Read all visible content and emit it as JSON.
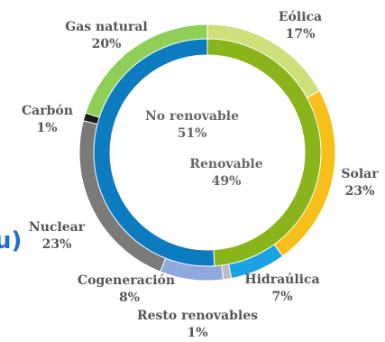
{
  "chart_data": {
    "type": "donut",
    "outer_ring": [
      {
        "name": "Eólica",
        "value": 17,
        "label": "17%",
        "color": "#cfe07a"
      },
      {
        "name": "Solar",
        "value": 23,
        "label": "23%",
        "color": "#f7bf1a"
      },
      {
        "name": "Hidraúlica",
        "value": 7,
        "label": "7%",
        "color": "#1ba2e2"
      },
      {
        "name": "Resto renovables",
        "value": 1,
        "label": "1%",
        "color": "#bdbdbd"
      },
      {
        "name": "Cogeneración",
        "value": 8,
        "label": "8%",
        "color": "#8fa9dd"
      },
      {
        "name": "Nuclear",
        "value": 23,
        "label": "23%",
        "color": "#7a7a7a"
      },
      {
        "name": "Carbón",
        "value": 1,
        "label": "1%",
        "color": "#1a1a1a"
      },
      {
        "name": "Gas natural",
        "value": 20,
        "label": "20%",
        "color": "#8fcf58"
      }
    ],
    "inner_ring": [
      {
        "name": "Renovable",
        "value": 49,
        "label": "49%",
        "color": "#8ab51a"
      },
      {
        "name": "No renovable",
        "value": 51,
        "label": "51%",
        "color": "#0d7bbf"
      }
    ]
  },
  "edge_glyph": "u)"
}
